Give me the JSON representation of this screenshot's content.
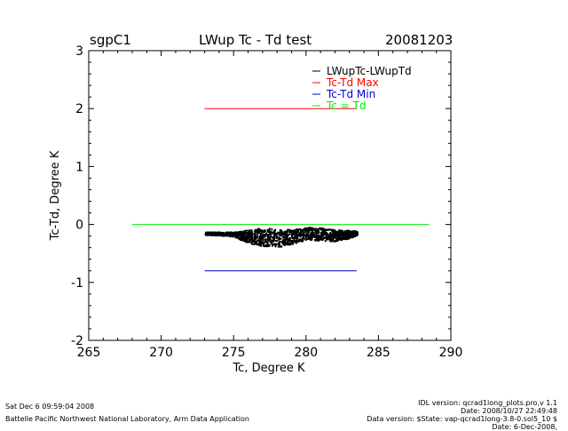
{
  "header": {
    "site": "sgpC1",
    "date": "20081203"
  },
  "chart_data": {
    "type": "scatter",
    "title": "LWup Tc - Td test",
    "xlabel": "Tc, Degree K",
    "ylabel": "Tc-Td, Degree K",
    "xlim": [
      265,
      290
    ],
    "ylim": [
      -2,
      3
    ],
    "xticks": [
      265,
      270,
      275,
      280,
      285,
      290
    ],
    "yticks": [
      -2,
      -1,
      0,
      1,
      2,
      3
    ],
    "legend_position": "top-right",
    "series": [
      {
        "name": "LWupTc-LWupTd",
        "color": "#000000",
        "style": "points",
        "envelope": [
          [
            273.0,
            -0.12,
            -0.17
          ],
          [
            274.0,
            -0.12,
            -0.18
          ],
          [
            275.0,
            -0.12,
            -0.2
          ],
          [
            275.5,
            -0.1,
            -0.26
          ],
          [
            276.0,
            -0.08,
            -0.32
          ],
          [
            277.0,
            -0.05,
            -0.36
          ],
          [
            278.0,
            -0.06,
            -0.38
          ],
          [
            279.0,
            -0.08,
            -0.33
          ],
          [
            280.0,
            -0.04,
            -0.25
          ],
          [
            281.0,
            -0.05,
            -0.27
          ],
          [
            282.0,
            -0.08,
            -0.28
          ],
          [
            283.5,
            -0.1,
            -0.2
          ]
        ]
      },
      {
        "name": "Tc-Td Max",
        "color": "#ff0000",
        "style": "line",
        "x": [
          273.0,
          283.5
        ],
        "y": [
          2.0,
          2.0
        ]
      },
      {
        "name": "Tc-Td Min",
        "color": "#0000cc",
        "style": "line",
        "x": [
          273.0,
          283.5
        ],
        "y": [
          -0.8,
          -0.8
        ]
      },
      {
        "name": "Tc = Td",
        "color": "#00ee00",
        "style": "line",
        "x": [
          268.0,
          288.5
        ],
        "y": [
          0.0,
          0.0
        ]
      }
    ]
  },
  "footer": {
    "left_line1": "Sat Dec  6 09:59:04 2008",
    "left_line2": "Battelle Pacific Northwest National Laboratory, Arm Data Application",
    "right_line1": "IDL version: qcrad1long_plots.pro,v 1.1",
    "right_line2": "Date: 2008/10/27 22:49:48",
    "right_line3": "Data version: $State: vap-qcrad1long-3.8-0.sol5_10 $",
    "right_line4": "Date: 6-Dec-2008,"
  }
}
